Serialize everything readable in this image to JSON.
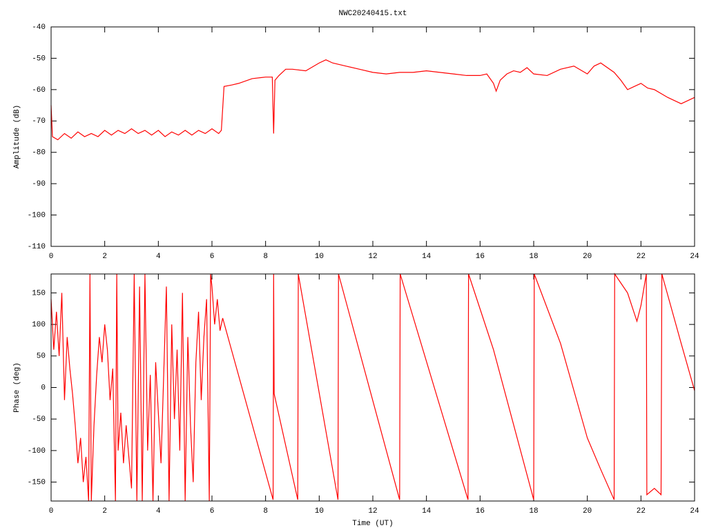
{
  "chart_data": [
    {
      "type": "line",
      "title": "NWC20240415.txt",
      "y_label": "Amplitude (dB)",
      "xlim": [
        0,
        24
      ],
      "xticks": [
        0,
        2,
        4,
        6,
        8,
        10,
        12,
        14,
        16,
        18,
        20,
        22,
        24
      ],
      "ylim": [
        -110,
        -40
      ],
      "yticks": [
        -110,
        -100,
        -90,
        -80,
        -70,
        -60,
        -50,
        -40
      ],
      "x": [
        0,
        0.05,
        0.25,
        0.5,
        0.75,
        1,
        1.25,
        1.5,
        1.75,
        2,
        2.25,
        2.5,
        2.75,
        3,
        3.25,
        3.5,
        3.75,
        4,
        4.25,
        4.5,
        4.75,
        5,
        5.25,
        5.5,
        5.75,
        6,
        6.25,
        6.35,
        6.45,
        6.75,
        7,
        7.5,
        8,
        8.25,
        8.3,
        8.35,
        8.5,
        8.75,
        9,
        9.5,
        10,
        10.25,
        10.5,
        11,
        11.5,
        12,
        12.5,
        13,
        13.5,
        14,
        14.5,
        15,
        15.5,
        16,
        16.25,
        16.5,
        16.6,
        16.75,
        17,
        17.25,
        17.5,
        17.75,
        18,
        18.5,
        19,
        19.5,
        20,
        20.25,
        20.5,
        21,
        21.25,
        21.5,
        21.75,
        22,
        22.25,
        22.5,
        23,
        23.5,
        24
      ],
      "series": [
        {
          "color": "#ff0000",
          "values": [
            -65,
            -75,
            -76,
            -74,
            -75.5,
            -73.5,
            -75,
            -74,
            -75,
            -73,
            -74.5,
            -73,
            -74,
            -72.5,
            -74,
            -73,
            -74.5,
            -73,
            -75,
            -73.5,
            -74.5,
            -73,
            -74.5,
            -73,
            -74,
            -72.5,
            -74,
            -73,
            -59,
            -58.5,
            -58,
            -56.5,
            -56,
            -56,
            -74,
            -57,
            -55.5,
            -53.5,
            -53.5,
            -54,
            -51.5,
            -50.5,
            -51.5,
            -52.5,
            -53.5,
            -54.5,
            -55,
            -54.5,
            -54.5,
            -54,
            -54.5,
            -55,
            -55.5,
            -55.5,
            -55,
            -58,
            -60.5,
            -57,
            -55,
            -54,
            -54.5,
            -53,
            -55,
            -55.5,
            -53.5,
            -52.5,
            -55,
            -52.5,
            -51.5,
            -54.5,
            -57,
            -60,
            -59,
            -58,
            -59.5,
            -60,
            -62.5,
            -64.5,
            -62.5
          ]
        }
      ]
    },
    {
      "type": "line",
      "x_label": "Time (UT)",
      "y_label": "Phase (deg)",
      "xlim": [
        0,
        24
      ],
      "xticks": [
        0,
        2,
        4,
        6,
        8,
        10,
        12,
        14,
        16,
        18,
        20,
        22,
        24
      ],
      "ylim": [
        -180,
        180
      ],
      "yticks": [
        -150,
        -100,
        -50,
        0,
        50,
        100,
        150
      ],
      "x": [
        0,
        0.1,
        0.2,
        0.3,
        0.4,
        0.5,
        0.6,
        0.7,
        0.8,
        0.9,
        1.0,
        1.1,
        1.2,
        1.3,
        1.4,
        1.45,
        1.5,
        1.6,
        1.7,
        1.8,
        1.9,
        2.0,
        2.1,
        2.2,
        2.3,
        2.4,
        2.45,
        2.5,
        2.6,
        2.7,
        2.8,
        2.9,
        3.0,
        3.1,
        3.2,
        3.3,
        3.4,
        3.5,
        3.6,
        3.7,
        3.8,
        3.9,
        4.0,
        4.1,
        4.2,
        4.3,
        4.4,
        4.5,
        4.6,
        4.7,
        4.8,
        4.9,
        5.0,
        5.1,
        5.2,
        5.3,
        5.4,
        5.5,
        5.6,
        5.7,
        5.8,
        5.9,
        5.95,
        6.0,
        6.1,
        6.2,
        6.3,
        6.4,
        8.28,
        8.3,
        8.32,
        9.2,
        9.22,
        10.7,
        10.72,
        13.0,
        13.02,
        15.55,
        15.57,
        16.5,
        18.0,
        18.02,
        19.0,
        20.0,
        20.5,
        21.0,
        21.02,
        21.5,
        21.85,
        22.0,
        22.2,
        22.22,
        22.5,
        22.75,
        22.78,
        23.5,
        24.0
      ],
      "series": [
        {
          "color": "#ff0000",
          "values": [
            140,
            60,
            120,
            50,
            150,
            -20,
            80,
            30,
            -10,
            -60,
            -120,
            -80,
            -150,
            -110,
            -180,
            180,
            -180,
            -60,
            20,
            80,
            40,
            100,
            60,
            -20,
            30,
            -180,
            180,
            -100,
            -40,
            -120,
            -60,
            -110,
            -160,
            180,
            -180,
            160,
            -180,
            180,
            -100,
            20,
            -180,
            40,
            -40,
            -120,
            20,
            160,
            -180,
            100,
            -50,
            60,
            -100,
            150,
            -180,
            80,
            -60,
            -150,
            40,
            120,
            -20,
            80,
            140,
            -180,
            180,
            160,
            100,
            140,
            90,
            110,
            -178,
            180,
            -10,
            -178,
            180,
            -178,
            180,
            -178,
            180,
            -178,
            180,
            60,
            -178,
            180,
            70,
            -80,
            -130,
            -178,
            180,
            150,
            105,
            130,
            180,
            -170,
            -160,
            -170,
            180,
            70,
            -5
          ]
        }
      ]
    }
  ]
}
